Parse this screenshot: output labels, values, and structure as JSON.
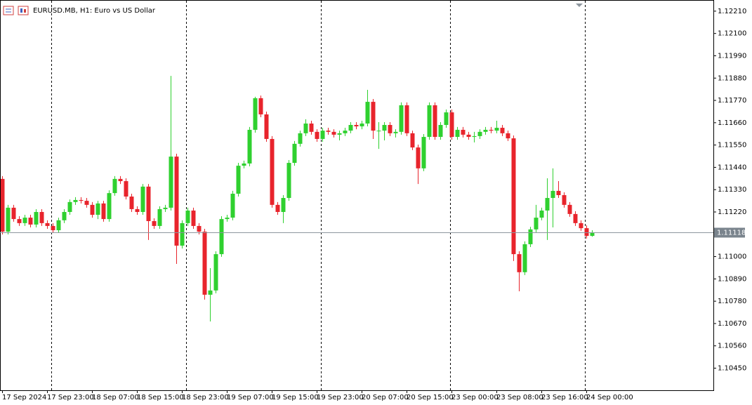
{
  "chart_data": {
    "type": "candlestick",
    "title": "EURUSD.MB, H1:  Euro vs US Dollar",
    "up_color": "#2fd02f",
    "down_color": "#e8242c",
    "price_line_color": "#8d969e",
    "categories": [
      "17 Sep 2024",
      null,
      null,
      null,
      null,
      null,
      null,
      null,
      "17 Sep 23:00",
      null,
      null,
      null,
      null,
      null,
      null,
      null,
      "18 Sep 07:00",
      null,
      null,
      null,
      null,
      null,
      null,
      null,
      "18 Sep 15:00",
      null,
      null,
      null,
      null,
      null,
      null,
      null,
      "18 Sep 23:00",
      null,
      null,
      null,
      null,
      null,
      null,
      null,
      "19 Sep 07:00",
      null,
      null,
      null,
      null,
      null,
      null,
      null,
      "19 Sep 15:00",
      null,
      null,
      null,
      null,
      null,
      null,
      null,
      "19 Sep 23:00",
      null,
      null,
      null,
      null,
      null,
      null,
      null,
      "20 Sep 07:00",
      null,
      null,
      null,
      null,
      null,
      null,
      null,
      "20 Sep 15:00",
      null,
      null,
      null,
      null,
      null,
      null,
      null,
      "23 Sep 00:00",
      null,
      null,
      null,
      null,
      null,
      null,
      null,
      "23 Sep 08:00",
      null,
      null,
      null,
      null,
      null,
      null,
      null,
      "23 Sep 16:00",
      null,
      null,
      null,
      null,
      null,
      null,
      null,
      "24 Sep 00:00",
      null
    ],
    "open": [
      1.11383,
      1.11123,
      1.11241,
      1.11185,
      1.11165,
      1.11192,
      1.11158,
      1.1122,
      1.11165,
      1.11151,
      1.1113,
      1.11179,
      1.1122,
      1.11269,
      1.11279,
      1.11275,
      1.11255,
      1.11206,
      1.11262,
      1.11185,
      1.11313,
      1.11383,
      1.11372,
      1.11296,
      1.11234,
      1.1122,
      1.11345,
      1.11175,
      1.11151,
      1.11234,
      1.11241,
      1.11493,
      1.11054,
      1.11165,
      1.11227,
      1.11151,
      1.11123,
      1.10812,
      1.10833,
      1.11012,
      1.11185,
      1.11192,
      1.1131,
      1.11448,
      1.11459,
      1.11625,
      1.11781,
      1.11701,
      1.1158,
      1.11255,
      1.1122,
      1.11289,
      1.11462,
      1.11556,
      1.11608,
      1.11656,
      1.11615,
      1.1158,
      1.11621,
      1.11615,
      1.11601,
      1.11608,
      1.11621,
      1.11649,
      1.11642,
      1.11656,
      1.11763,
      1.11621,
      1.11621,
      1.11649,
      1.11608,
      1.11615,
      1.11746,
      1.11608,
      1.11538,
      1.11435,
      1.1159,
      1.11746,
      1.1159,
      1.11649,
      1.11711,
      1.1159,
      1.11625,
      1.11601,
      1.1159,
      1.11594,
      1.11615,
      1.11625,
      1.11621,
      1.11635,
      1.11608,
      1.11583,
      1.11012,
      1.10923,
      1.11061,
      1.11134,
      1.11192,
      1.11227,
      1.11289,
      1.11324,
      1.11303,
      1.11255,
      1.1121,
      1.11165,
      1.1114,
      1.11102
    ],
    "high": [
      1.11397,
      1.11255,
      1.11255,
      1.11199,
      1.11206,
      1.11206,
      1.11234,
      1.11234,
      1.11179,
      1.11165,
      1.11192,
      1.11234,
      1.11282,
      1.11293,
      1.11293,
      1.11289,
      1.11269,
      1.11275,
      1.11275,
      1.11327,
      1.11397,
      1.11397,
      1.11386,
      1.1131,
      1.11248,
      1.11358,
      1.11358,
      1.11189,
      1.11248,
      1.11255,
      1.11891,
      1.11507,
      1.11179,
      1.11241,
      1.11241,
      1.11165,
      1.11137,
      1.10943,
      1.11026,
      1.11199,
      1.11206,
      1.11324,
      1.11462,
      1.11473,
      1.11639,
      1.11788,
      1.11794,
      1.11715,
      1.11594,
      1.11269,
      1.11303,
      1.11476,
      1.1157,
      1.11621,
      1.11677,
      1.1167,
      1.11628,
      1.11635,
      1.11635,
      1.11628,
      1.11621,
      1.11635,
      1.11663,
      1.11663,
      1.1167,
      1.11822,
      1.11777,
      1.11663,
      1.11663,
      1.11663,
      1.11628,
      1.1176,
      1.1176,
      1.11621,
      1.11552,
      1.11604,
      1.1176,
      1.1176,
      1.11663,
      1.11725,
      1.11725,
      1.11639,
      1.11639,
      1.11615,
      1.11615,
      1.11628,
      1.11639,
      1.11639,
      1.1167,
      1.11649,
      1.11621,
      1.11597,
      1.11026,
      1.11075,
      1.11147,
      1.11255,
      1.11241,
      1.11386,
      1.11435,
      1.11372,
      1.11317,
      1.11269,
      1.11224,
      1.11179,
      1.11154,
      1.1113
    ],
    "low": [
      1.11109,
      1.11109,
      1.11172,
      1.11151,
      1.11151,
      1.11144,
      1.11144,
      1.11151,
      1.11137,
      1.11116,
      1.11116,
      1.11165,
      1.11206,
      1.11255,
      1.11262,
      1.11241,
      1.11192,
      1.11185,
      1.11172,
      1.11172,
      1.113,
      1.11358,
      1.11282,
      1.1122,
      1.11206,
      1.11206,
      1.11082,
      1.11137,
      1.11137,
      1.1122,
      1.11227,
      1.10964,
      1.1104,
      1.11151,
      1.11137,
      1.11109,
      1.10788,
      1.1068,
      1.10819,
      1.10999,
      1.11172,
      1.11179,
      1.11296,
      1.11435,
      1.11445,
      1.11611,
      1.11687,
      1.11566,
      1.11241,
      1.11206,
      1.11165,
      1.11275,
      1.11448,
      1.11542,
      1.11594,
      1.11601,
      1.11566,
      1.11566,
      1.11601,
      1.11587,
      1.11573,
      1.11594,
      1.11608,
      1.11628,
      1.11628,
      1.11642,
      1.1158,
      1.11531,
      1.11573,
      1.11594,
      1.11587,
      1.11601,
      1.11594,
      1.11525,
      1.11358,
      1.11421,
      1.11576,
      1.11576,
      1.11576,
      1.11635,
      1.11576,
      1.11576,
      1.11587,
      1.11576,
      1.11563,
      1.1158,
      1.11601,
      1.11608,
      1.11608,
      1.11594,
      1.1157,
      1.10978,
      1.10829,
      1.10909,
      1.11047,
      1.1112,
      1.11179,
      1.11082,
      1.11144,
      1.11289,
      1.11241,
      1.11196,
      1.11151,
      1.11127,
      1.11089,
      1.11098
    ],
    "close": [
      1.11123,
      1.11241,
      1.11185,
      1.11165,
      1.11192,
      1.11158,
      1.1122,
      1.11165,
      1.11151,
      1.1113,
      1.11179,
      1.1122,
      1.11269,
      1.11279,
      1.11275,
      1.11255,
      1.11206,
      1.11262,
      1.11185,
      1.11313,
      1.11383,
      1.11372,
      1.11296,
      1.11234,
      1.1122,
      1.11345,
      1.11175,
      1.11151,
      1.11234,
      1.11241,
      1.11493,
      1.11054,
      1.11165,
      1.11227,
      1.11151,
      1.11123,
      1.10812,
      1.10833,
      1.11012,
      1.11185,
      1.11192,
      1.1131,
      1.11448,
      1.11459,
      1.11625,
      1.11781,
      1.11701,
      1.1158,
      1.11255,
      1.1122,
      1.11289,
      1.11462,
      1.11556,
      1.11608,
      1.11656,
      1.11615,
      1.1158,
      1.11621,
      1.11615,
      1.11601,
      1.11608,
      1.11621,
      1.11649,
      1.11642,
      1.11656,
      1.11763,
      1.11621,
      1.11621,
      1.11649,
      1.11608,
      1.11615,
      1.11746,
      1.11608,
      1.11538,
      1.11435,
      1.1159,
      1.11746,
      1.1159,
      1.11649,
      1.11711,
      1.1159,
      1.11625,
      1.11601,
      1.1159,
      1.11594,
      1.11615,
      1.11625,
      1.11621,
      1.11635,
      1.11608,
      1.11583,
      1.11012,
      1.10923,
      1.11061,
      1.11134,
      1.11192,
      1.11227,
      1.11289,
      1.11324,
      1.11303,
      1.11255,
      1.1121,
      1.11165,
      1.1114,
      1.11102,
      1.11118
    ],
    "ylim": [
      1.10341,
      1.12265
    ],
    "yticks": [
      {
        "value": 1.1221,
        "label": "1.12210"
      },
      {
        "value": 1.121,
        "label": "1.12100"
      },
      {
        "value": 1.1199,
        "label": "1.11990"
      },
      {
        "value": 1.1188,
        "label": "1.11880"
      },
      {
        "value": 1.1177,
        "label": "1.11770"
      },
      {
        "value": 1.1166,
        "label": "1.11660"
      },
      {
        "value": 1.1155,
        "label": "1.11550"
      },
      {
        "value": 1.1144,
        "label": "1.11440"
      },
      {
        "value": 1.1133,
        "label": "1.11330"
      },
      {
        "value": 1.1122,
        "label": "1.11220"
      },
      {
        "value": 1.11,
        "label": "1.11000"
      },
      {
        "value": 1.1089,
        "label": "1.10890"
      },
      {
        "value": 1.1078,
        "label": "1.10780"
      },
      {
        "value": 1.1067,
        "label": "1.10670"
      },
      {
        "value": 1.1056,
        "label": "1.10560"
      },
      {
        "value": 1.1045,
        "label": "1.10450"
      }
    ]
  }
}
